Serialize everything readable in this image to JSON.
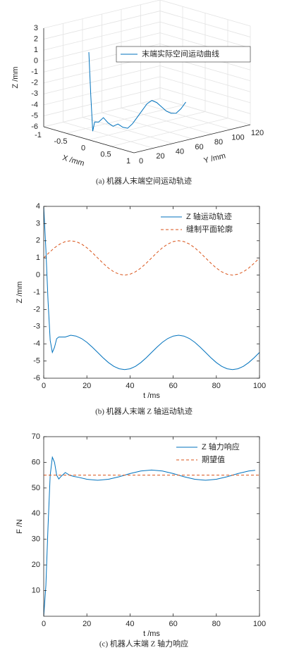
{
  "chart_data": [
    {
      "type": "line3d",
      "caption": "(a) 机器人末端空间运动轨迹",
      "xlabel": "X /mm",
      "ylabel": "Y /mm",
      "zlabel": "Z /mm",
      "xlim": [
        -1,
        1
      ],
      "xticks": [
        -1,
        -0.5,
        0,
        0.5,
        1
      ],
      "ylim": [
        0,
        120
      ],
      "yticks": [
        0,
        20,
        40,
        60,
        80,
        100,
        120
      ],
      "zlim": [
        -6,
        3
      ],
      "zticks": [
        -6,
        -5,
        -4,
        -3,
        -2,
        -1,
        0,
        1,
        2,
        3
      ],
      "grid": true,
      "legend": "upper right",
      "series": [
        {
          "name": "末端实际空间运动曲线",
          "color": "#0072bd",
          "x": [
            0,
            0,
            0,
            0,
            0,
            0,
            0,
            0,
            0,
            0,
            0,
            0,
            0,
            0,
            0,
            0,
            0,
            0,
            0,
            0,
            0,
            0,
            0
          ],
          "y": [
            0,
            2,
            4,
            6,
            10,
            15,
            20,
            25,
            30,
            35,
            40,
            45,
            50,
            55,
            60,
            65,
            70,
            75,
            80,
            85,
            90,
            95,
            100
          ],
          "z": [
            2,
            -2,
            -5.3,
            -4.5,
            -4.6,
            -4.3,
            -4.9,
            -5.3,
            -5.2,
            -5.6,
            -5.8,
            -5.5,
            -5.0,
            -4.5,
            -4.0,
            -3.8,
            -4.1,
            -4.6,
            -5.1,
            -5.4,
            -5.5,
            -5.2,
            -4.7
          ]
        }
      ]
    },
    {
      "type": "line",
      "caption": "(b) 机器人末端 Z 轴运动轨迹",
      "xlabel": "t /ms",
      "ylabel": "Z /mm",
      "xlim": [
        0,
        100
      ],
      "xticks": [
        0,
        20,
        40,
        60,
        80,
        100
      ],
      "ylim": [
        -6,
        4
      ],
      "yticks": [
        -6,
        -5,
        -4,
        -3,
        -2,
        -1,
        0,
        1,
        2,
        3,
        4
      ],
      "legend": "upper right",
      "series": [
        {
          "name": "Z 轴运动轨迹",
          "color": "#0072bd",
          "style": "solid",
          "x": [
            0,
            1,
            2,
            3,
            4,
            5,
            6,
            7,
            8,
            10,
            12.5,
            15,
            17.5,
            20,
            22.5,
            25,
            27.5,
            30,
            32.5,
            35,
            37.5,
            40,
            42.5,
            45,
            47.5,
            50,
            52.5,
            55,
            57.5,
            60,
            62.5,
            65,
            67.5,
            70,
            72.5,
            75,
            77.5,
            80,
            82.5,
            85,
            87.5,
            90,
            92.5,
            95,
            97.5,
            100
          ],
          "values": [
            4,
            1.5,
            -1.5,
            -3.8,
            -4.5,
            -4.2,
            -3.7,
            -3.6,
            -3.6,
            -3.6,
            -3.5,
            -3.55,
            -3.69,
            -3.91,
            -4.19,
            -4.5,
            -4.81,
            -5.09,
            -5.31,
            -5.45,
            -5.5,
            -5.45,
            -5.31,
            -5.09,
            -4.81,
            -4.5,
            -4.19,
            -3.91,
            -3.69,
            -3.55,
            -3.5,
            -3.55,
            -3.69,
            -3.91,
            -4.19,
            -4.5,
            -4.81,
            -5.09,
            -5.31,
            -5.45,
            -5.5,
            -5.45,
            -5.31,
            -5.09,
            -4.81,
            -4.5
          ]
        },
        {
          "name": "缝制平面轮廓",
          "color": "#d95319",
          "style": "dashed",
          "x": [
            0,
            2.5,
            5,
            7.5,
            10,
            12.5,
            15,
            17.5,
            20,
            22.5,
            25,
            27.5,
            30,
            32.5,
            35,
            37.5,
            40,
            42.5,
            45,
            47.5,
            50,
            52.5,
            55,
            57.5,
            60,
            62.5,
            65,
            67.5,
            70,
            72.5,
            75,
            77.5,
            80,
            82.5,
            85,
            87.5,
            90,
            92.5,
            95,
            97.5,
            100
          ],
          "values": [
            1,
            1.31,
            1.59,
            1.81,
            1.95,
            2,
            1.95,
            1.81,
            1.59,
            1.31,
            1,
            0.69,
            0.41,
            0.19,
            0.05,
            0,
            0.05,
            0.19,
            0.41,
            0.69,
            1,
            1.31,
            1.59,
            1.81,
            1.95,
            2,
            1.95,
            1.81,
            1.59,
            1.31,
            1,
            0.69,
            0.41,
            0.19,
            0.05,
            0,
            0.05,
            0.19,
            0.41,
            0.69,
            1
          ]
        }
      ]
    },
    {
      "type": "line",
      "caption": "(c) 机器人末端 Z 轴力响应",
      "xlabel": "t /ms",
      "ylabel": "F /N",
      "xlim": [
        0,
        100
      ],
      "xticks": [
        0,
        20,
        40,
        60,
        80,
        100
      ],
      "ylim": [
        0,
        70
      ],
      "yticks": [
        10,
        20,
        30,
        40,
        50,
        60,
        70
      ],
      "legend": "upper right",
      "series": [
        {
          "name": "Z 轴力响应",
          "color": "#0072bd",
          "style": "solid",
          "x": [
            0,
            1,
            2,
            3,
            4,
            5,
            6,
            7,
            8,
            10,
            12,
            14,
            16,
            20,
            25,
            30,
            35,
            40,
            45,
            50,
            55,
            60,
            65,
            70,
            75,
            80,
            85,
            90,
            95,
            98
          ],
          "values": [
            0,
            12,
            35,
            55,
            62,
            60,
            55,
            53.5,
            54.5,
            56,
            55,
            54.5,
            54.2,
            53.38,
            53,
            53.38,
            54.38,
            55.62,
            56.62,
            57,
            56.62,
            55.62,
            54.38,
            53.38,
            53,
            53.38,
            54.38,
            55.62,
            56.62,
            56.9
          ]
        },
        {
          "name": "期望值",
          "color": "#d95319",
          "style": "dashed",
          "x": [
            0,
            100
          ],
          "values": [
            55,
            55
          ]
        }
      ]
    }
  ]
}
